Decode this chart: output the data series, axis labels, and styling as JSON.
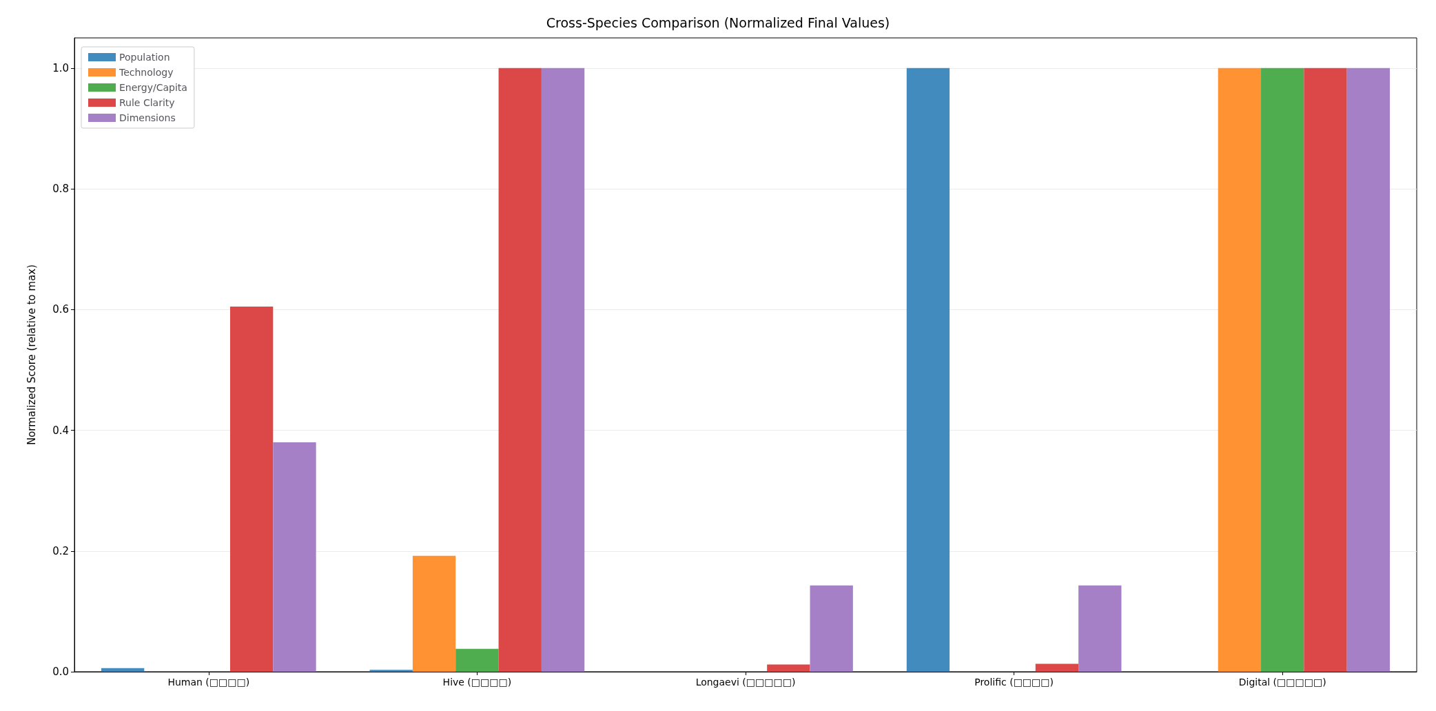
{
  "chart_data": {
    "type": "bar",
    "title": "Cross-Species Comparison (Normalized Final Values)",
    "ylabel": "Normalized Score (relative to max)",
    "categories": [
      "Human (□□□□)",
      "Hive (□□□□)",
      "Longaevi (□□□□□)",
      "Prolific (□□□□)",
      "Digital (□□□□□)"
    ],
    "series": [
      {
        "name": "Population",
        "color": "#428bbf",
        "values": [
          0.006,
          0.003,
          0,
          1.0,
          0
        ]
      },
      {
        "name": "Technology",
        "color": "#ff9233",
        "values": [
          0,
          0.192,
          0,
          0,
          1.0
        ]
      },
      {
        "name": "Energy/Capita",
        "color": "#4fad4f",
        "values": [
          0,
          0.038,
          0,
          0,
          1.0
        ]
      },
      {
        "name": "Rule Clarity",
        "color": "#dc4848",
        "values": [
          0.605,
          1.0,
          0.012,
          0.013,
          1.0
        ]
      },
      {
        "name": "Dimensions",
        "color": "#a680c6",
        "values": [
          0.38,
          1.0,
          0.143,
          0.143,
          1.0
        ]
      }
    ],
    "ylim": [
      0,
      1.05
    ],
    "yticks": [
      {
        "value": 0,
        "label": "0.0"
      },
      0.2,
      0.4,
      0.6,
      0.8,
      {
        "value": 1,
        "label": "1.0"
      }
    ],
    "grid": "y",
    "legend": "top left"
  }
}
